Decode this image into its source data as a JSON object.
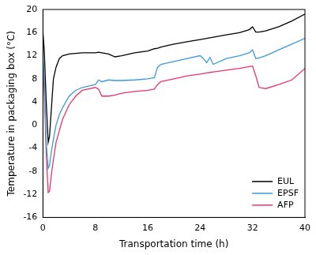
{
  "chart_data": {
    "type": "line",
    "x_label": "Transportation time (h)",
    "y_label": "Temperature in packaging box (°C)",
    "x": [
      0,
      0.2,
      0.5,
      0.8,
      1,
      1.3,
      1.6,
      2,
      2.5,
      3,
      4,
      5,
      6,
      8,
      8.5,
      9,
      10,
      11,
      12,
      14,
      16,
      17,
      17.5,
      18,
      20,
      22,
      24,
      24.5,
      25,
      25.5,
      26,
      28,
      30,
      31.5,
      32,
      32.5,
      33,
      34,
      36,
      38,
      40
    ],
    "series": [
      {
        "name": "EUL",
        "color": "#000000",
        "values": [
          16,
          13,
          4,
          -3,
          -2,
          3,
          8,
          10,
          11.5,
          12,
          12.3,
          12.4,
          12.5,
          12.5,
          12.6,
          12.5,
          12.3,
          11.8,
          12,
          12.5,
          12.8,
          13.2,
          13.3,
          13.5,
          14,
          14.4,
          14.8,
          14.9,
          15,
          15.1,
          15.2,
          15.6,
          16,
          16.5,
          17,
          16.1,
          16.1,
          16.3,
          17,
          18,
          19.2
        ]
      },
      {
        "name": "EPSF",
        "color": "#3a9ad9",
        "values": [
          12,
          8,
          -3,
          -7.5,
          -7,
          -4.5,
          -2.5,
          0,
          1.8,
          3,
          5,
          6,
          6.5,
          7,
          7.8,
          7.5,
          7.8,
          7.7,
          7.7,
          7.8,
          8,
          8.2,
          10,
          10.5,
          11,
          11.5,
          12,
          11.5,
          10.8,
          11.7,
          10.5,
          11.5,
          12,
          12.5,
          13,
          11.5,
          11.6,
          12,
          13,
          14,
          15
        ]
      },
      {
        "name": "AFP",
        "color": "#e8336b",
        "values": [
          10,
          6,
          -5,
          -11.7,
          -11.5,
          -8.5,
          -6,
          -3,
          -1,
          1,
          3.5,
          5,
          6,
          6.5,
          6.2,
          5,
          5,
          5.2,
          5.5,
          5.8,
          6,
          6.2,
          7,
          7.5,
          8,
          8.5,
          8.8,
          8.9,
          9,
          9.1,
          9.2,
          9.5,
          9.8,
          10.1,
          10.2,
          8.5,
          6.5,
          6.3,
          7,
          7.8,
          9.8
        ]
      }
    ],
    "xlim": [
      0,
      40
    ],
    "xticks": [
      0,
      8,
      16,
      24,
      32,
      40
    ],
    "ylim": [
      -16,
      20
    ],
    "yticks": [
      -16,
      -12,
      -8,
      -4,
      0,
      4,
      8,
      12,
      16,
      20
    ],
    "grid": false,
    "legend": "lower right"
  }
}
